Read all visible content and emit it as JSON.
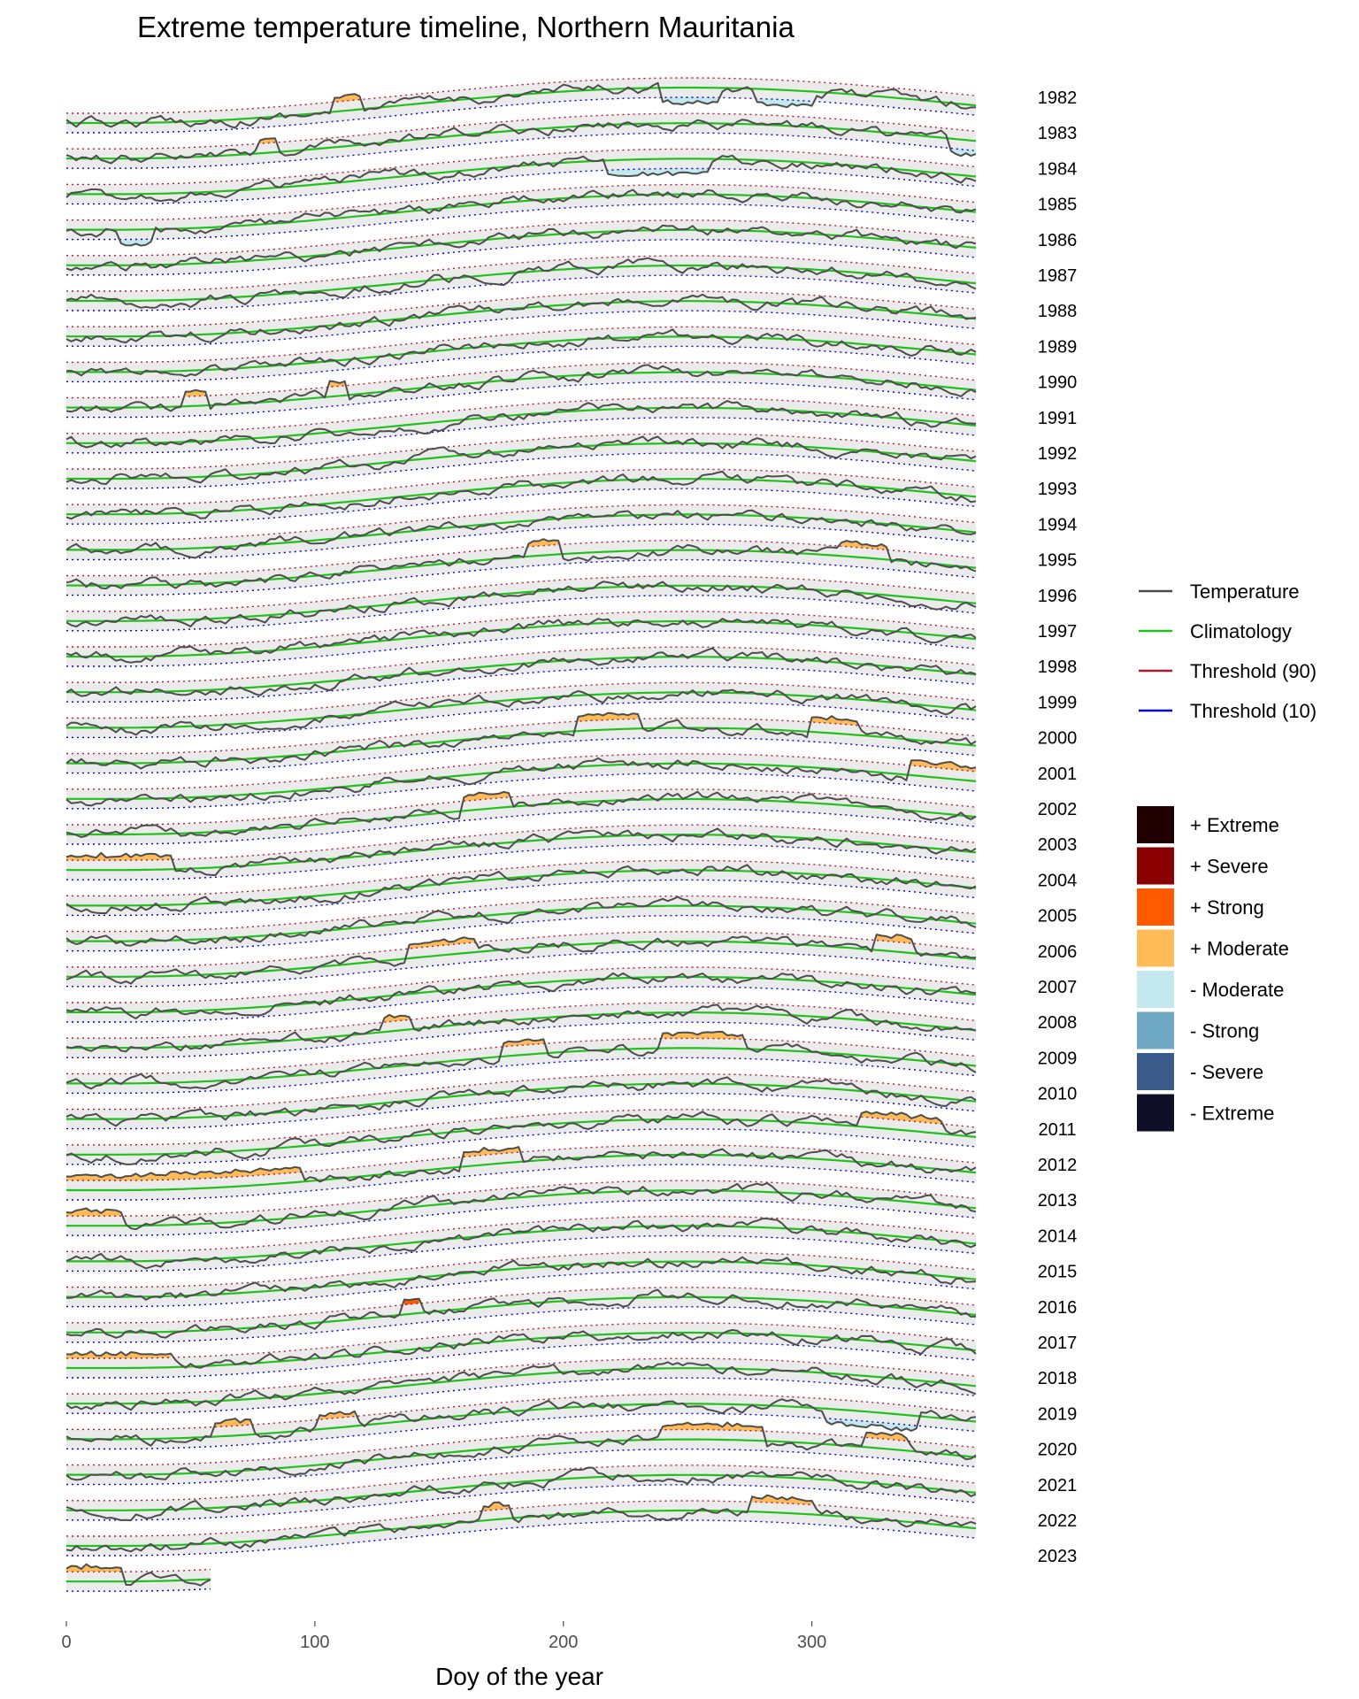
{
  "chart_data": {
    "type": "line",
    "title": "Extreme temperature timeline, Northern Mauritania",
    "xlabel": "Doy of the year",
    "ylabel": "",
    "xlim": [
      0,
      366
    ],
    "xticks": [
      0,
      100,
      200,
      300
    ],
    "years": [
      "1982",
      "1983",
      "1984",
      "1985",
      "1986",
      "1987",
      "1988",
      "1989",
      "1990",
      "1991",
      "1992",
      "1993",
      "1994",
      "1995",
      "1996",
      "1997",
      "1998",
      "1999",
      "2000",
      "2001",
      "2002",
      "2003",
      "2004",
      "2005",
      "2006",
      "2007",
      "2008",
      "2009",
      "2010",
      "2011",
      "2012",
      "2013",
      "2014",
      "2015",
      "2016",
      "2017",
      "2018",
      "2019",
      "2020",
      "2021",
      "2022",
      "2023"
    ],
    "last_year_end_doy": 58,
    "climatology_shape": {
      "min_day": 20,
      "max_day": 250,
      "relative_amplitude": 1.0
    },
    "line_legend": [
      {
        "name": "Temperature",
        "color": "#4d4d4d"
      },
      {
        "name": "Climatology",
        "color": "#22c01c"
      },
      {
        "name": "Threshold (90)",
        "color": "#b2182b"
      },
      {
        "name": "Threshold (10)",
        "color": "#0000cc"
      }
    ],
    "category_legend": [
      {
        "name": "+ Extreme",
        "color": "#200000"
      },
      {
        "name": "+ Severe",
        "color": "#8b0000"
      },
      {
        "name": "+ Strong",
        "color": "#ff5a00"
      },
      {
        "name": "+ Moderate",
        "color": "#ffbb55"
      },
      {
        "name": "- Moderate",
        "color": "#c3e8ee"
      },
      {
        "name": "- Strong",
        "color": "#6ea8c2"
      },
      {
        "name": "- Severe",
        "color": "#3a5a8a"
      },
      {
        "name": "- Extreme",
        "color": "#0f0f28"
      }
    ],
    "anomaly_events": [
      {
        "year": "1982",
        "start": 108,
        "end": 118,
        "cat": "+ Moderate"
      },
      {
        "year": "1982",
        "start": 240,
        "end": 262,
        "cat": "- Moderate"
      },
      {
        "year": "1982",
        "start": 278,
        "end": 300,
        "cat": "- Moderate"
      },
      {
        "year": "1983",
        "start": 78,
        "end": 84,
        "cat": "+ Moderate"
      },
      {
        "year": "1983",
        "start": 355,
        "end": 366,
        "cat": "- Moderate"
      },
      {
        "year": "1984",
        "start": 218,
        "end": 258,
        "cat": "- Moderate"
      },
      {
        "year": "1985",
        "start": 22,
        "end": 34,
        "cat": "- Moderate"
      },
      {
        "year": "1990",
        "start": 48,
        "end": 56,
        "cat": "+ Moderate"
      },
      {
        "year": "1990",
        "start": 105,
        "end": 112,
        "cat": "+ Moderate"
      },
      {
        "year": "1995",
        "start": 185,
        "end": 198,
        "cat": "+ Moderate"
      },
      {
        "year": "1995",
        "start": 312,
        "end": 330,
        "cat": "+ Moderate"
      },
      {
        "year": "2000",
        "start": 205,
        "end": 230,
        "cat": "+ Moderate"
      },
      {
        "year": "2000",
        "start": 300,
        "end": 318,
        "cat": "+ Moderate"
      },
      {
        "year": "2001",
        "start": 340,
        "end": 366,
        "cat": "+ Moderate"
      },
      {
        "year": "2002",
        "start": 160,
        "end": 178,
        "cat": "+ Moderate"
      },
      {
        "year": "2003",
        "start": 0,
        "end": 42,
        "cat": "+ Moderate"
      },
      {
        "year": "2006",
        "start": 138,
        "end": 165,
        "cat": "+ Moderate"
      },
      {
        "year": "2006",
        "start": 325,
        "end": 340,
        "cat": "+ Moderate"
      },
      {
        "year": "2008",
        "start": 128,
        "end": 138,
        "cat": "+ Moderate"
      },
      {
        "year": "2009",
        "start": 175,
        "end": 192,
        "cat": "+ Moderate"
      },
      {
        "year": "2009",
        "start": 240,
        "end": 272,
        "cat": "+ Moderate"
      },
      {
        "year": "2011",
        "start": 320,
        "end": 352,
        "cat": "+ Moderate"
      },
      {
        "year": "2012",
        "start": 0,
        "end": 95,
        "cat": "+ Moderate"
      },
      {
        "year": "2012",
        "start": 160,
        "end": 182,
        "cat": "+ Moderate"
      },
      {
        "year": "2013",
        "start": 0,
        "end": 22,
        "cat": "+ Moderate"
      },
      {
        "year": "2016",
        "start": 135,
        "end": 142,
        "cat": "+ Strong"
      },
      {
        "year": "2017",
        "start": 0,
        "end": 42,
        "cat": "+ Moderate"
      },
      {
        "year": "2019",
        "start": 60,
        "end": 75,
        "cat": "+ Moderate"
      },
      {
        "year": "2019",
        "start": 102,
        "end": 116,
        "cat": "+ Moderate"
      },
      {
        "year": "2019",
        "start": 305,
        "end": 342,
        "cat": "- Moderate"
      },
      {
        "year": "2020",
        "start": 240,
        "end": 280,
        "cat": "+ Moderate"
      },
      {
        "year": "2020",
        "start": 322,
        "end": 338,
        "cat": "+ Moderate"
      },
      {
        "year": "2022",
        "start": 168,
        "end": 178,
        "cat": "+ Moderate"
      },
      {
        "year": "2022",
        "start": 275,
        "end": 300,
        "cat": "+ Moderate"
      },
      {
        "year": "2023",
        "start": 0,
        "end": 22,
        "cat": "+ Moderate"
      }
    ]
  }
}
